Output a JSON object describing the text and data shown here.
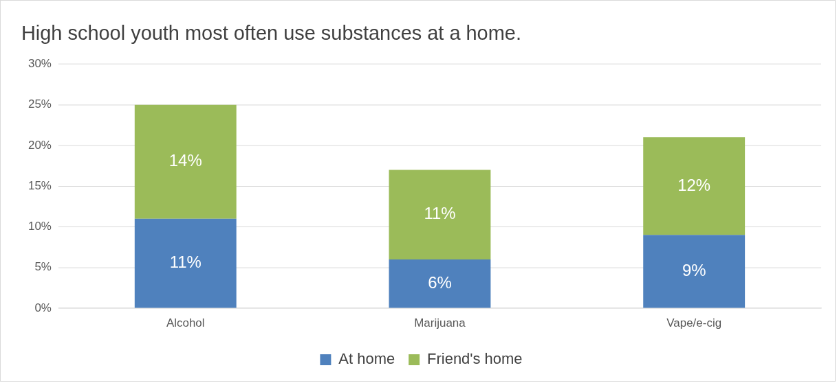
{
  "chart_data": {
    "type": "bar",
    "title": "High school youth most often use substances at a home.",
    "categories": [
      "Alcohol",
      "Marijuana",
      "Vape/e-cig"
    ],
    "stacked": true,
    "series": [
      {
        "name": "At home",
        "color": "#4f81bd",
        "values": [
          11,
          6,
          9
        ],
        "value_labels": [
          "11%",
          "6%",
          "9%"
        ]
      },
      {
        "name": "Friend's home",
        "color": "#9bbb59",
        "values": [
          14,
          11,
          12
        ],
        "value_labels": [
          "14%",
          "11%",
          "12%"
        ]
      }
    ],
    "ylim": [
      0,
      30
    ],
    "yticks": [
      {
        "value": 0,
        "label": "0%"
      },
      {
        "value": 5,
        "label": "5%"
      },
      {
        "value": 10,
        "label": "10%"
      },
      {
        "value": 15,
        "label": "15%"
      },
      {
        "value": 20,
        "label": "20%"
      },
      {
        "value": 25,
        "label": "25%"
      },
      {
        "value": 30,
        "label": "30%"
      }
    ],
    "grid": "y",
    "legend": "bottom"
  }
}
